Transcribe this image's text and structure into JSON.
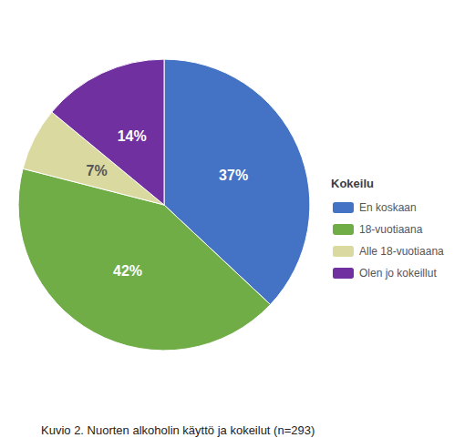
{
  "chart_data": {
    "type": "pie",
    "categories": [
      "En koskaan",
      "18-vuotiaana",
      "Alle 18-vuotiaana",
      "Olen jo kokeillut"
    ],
    "values": [
      37,
      42,
      7,
      14
    ],
    "value_labels": [
      "37%",
      "42%",
      "7%",
      "14%"
    ],
    "colors": [
      "#4472C4",
      "#70AD47",
      "#D9D9A0",
      "#7030A0"
    ],
    "data_labels": true,
    "legend": "right",
    "legend_title": "Kokeilu",
    "caption": "Kuvio 2. Nuorten alkoholin käyttö ja kokeilut (n=293)"
  }
}
